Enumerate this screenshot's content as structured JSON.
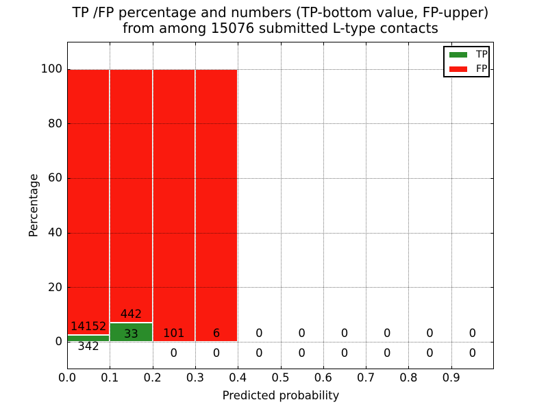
{
  "chart_data": {
    "type": "bar",
    "stacked": true,
    "title_lines": [
      "TP /FP percentage and numbers (TP-bottom value, FP-upper)",
      "from among 15076 submitted L-type contacts"
    ],
    "total_submitted_contacts": 15076,
    "xlabel": "Predicted probability",
    "ylabel": "Percentage",
    "xlim": [
      0.0,
      1.0
    ],
    "ylim": [
      -10,
      110
    ],
    "xticks": [
      "0.0",
      "0.1",
      "0.2",
      "0.3",
      "0.4",
      "0.5",
      "0.6",
      "0.7",
      "0.8",
      "0.9"
    ],
    "yticks": [
      0,
      20,
      40,
      60,
      80,
      100
    ],
    "grid": "dotted",
    "legend_position": "upper right",
    "bin_width": 0.1,
    "bin_centers": [
      0.05,
      0.15,
      0.25,
      0.35,
      0.45,
      0.55,
      0.65,
      0.75,
      0.85,
      0.95
    ],
    "series": [
      {
        "name": "TP",
        "color": "#2a8c2a",
        "counts": [
          342,
          33,
          0,
          0,
          0,
          0,
          0,
          0,
          0,
          0
        ]
      },
      {
        "name": "FP",
        "color": "#fa1a0e",
        "counts": [
          14152,
          442,
          101,
          6,
          0,
          0,
          0,
          0,
          0,
          0
        ]
      }
    ],
    "tp_percent": [
      2.36,
      6.95,
      0,
      0,
      0,
      0,
      0,
      0,
      0,
      0
    ],
    "fp_percent": [
      97.64,
      93.05,
      100,
      100,
      0,
      0,
      0,
      0,
      0,
      0
    ]
  }
}
